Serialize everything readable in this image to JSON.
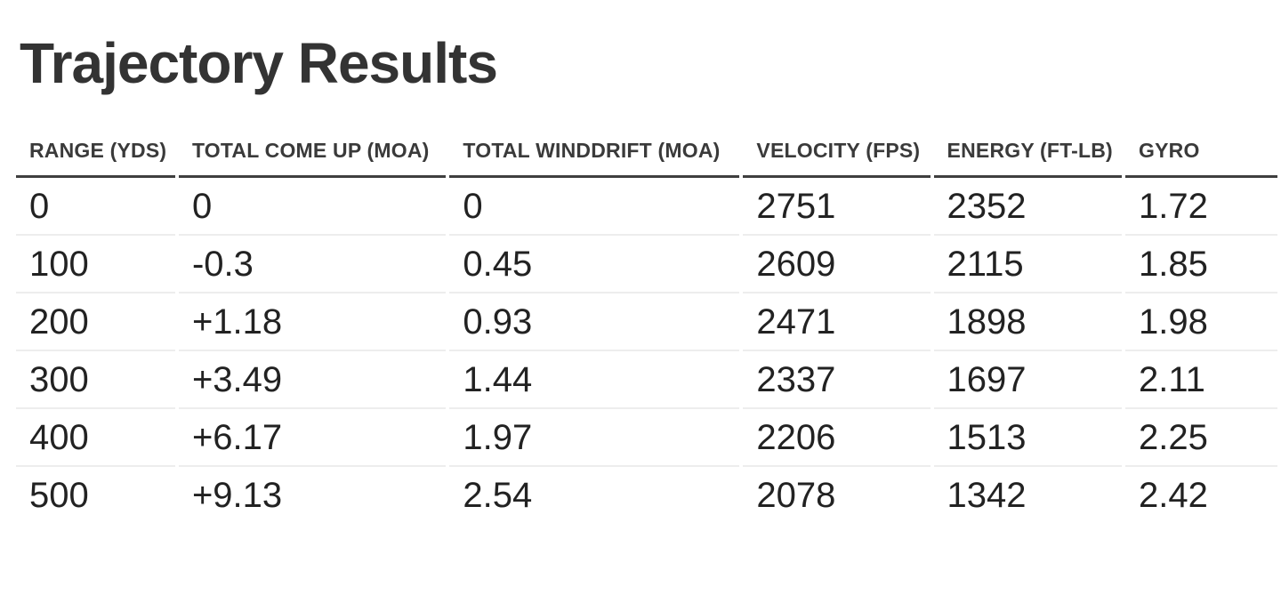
{
  "title": "Trajectory Results",
  "table": {
    "headers": [
      "RANGE (YDS)",
      "TOTAL COME UP (MOA)",
      "TOTAL WINDDRIFT (MOA)",
      "VELOCITY (FPS)",
      "ENERGY (FT-LB)",
      "GYRO"
    ],
    "rows": [
      [
        "0",
        "0",
        "0",
        "2751",
        "2352",
        "1.72"
      ],
      [
        "100",
        "-0.3",
        "0.45",
        "2609",
        "2115",
        "1.85"
      ],
      [
        "200",
        "+1.18",
        "0.93",
        "2471",
        "1898",
        "1.98"
      ],
      [
        "300",
        "+3.49",
        "1.44",
        "2337",
        "1697",
        "2.11"
      ],
      [
        "400",
        "+6.17",
        "1.97",
        "2206",
        "1513",
        "2.25"
      ],
      [
        "500",
        "+9.13",
        "2.54",
        "2078",
        "1342",
        "2.42"
      ]
    ]
  },
  "colors": {
    "background": "#ffffff",
    "title_text": "#333333",
    "header_text": "#3a3a3a",
    "header_border": "#3f3f3f",
    "cell_text": "#222222",
    "row_divider": "#ededed"
  }
}
